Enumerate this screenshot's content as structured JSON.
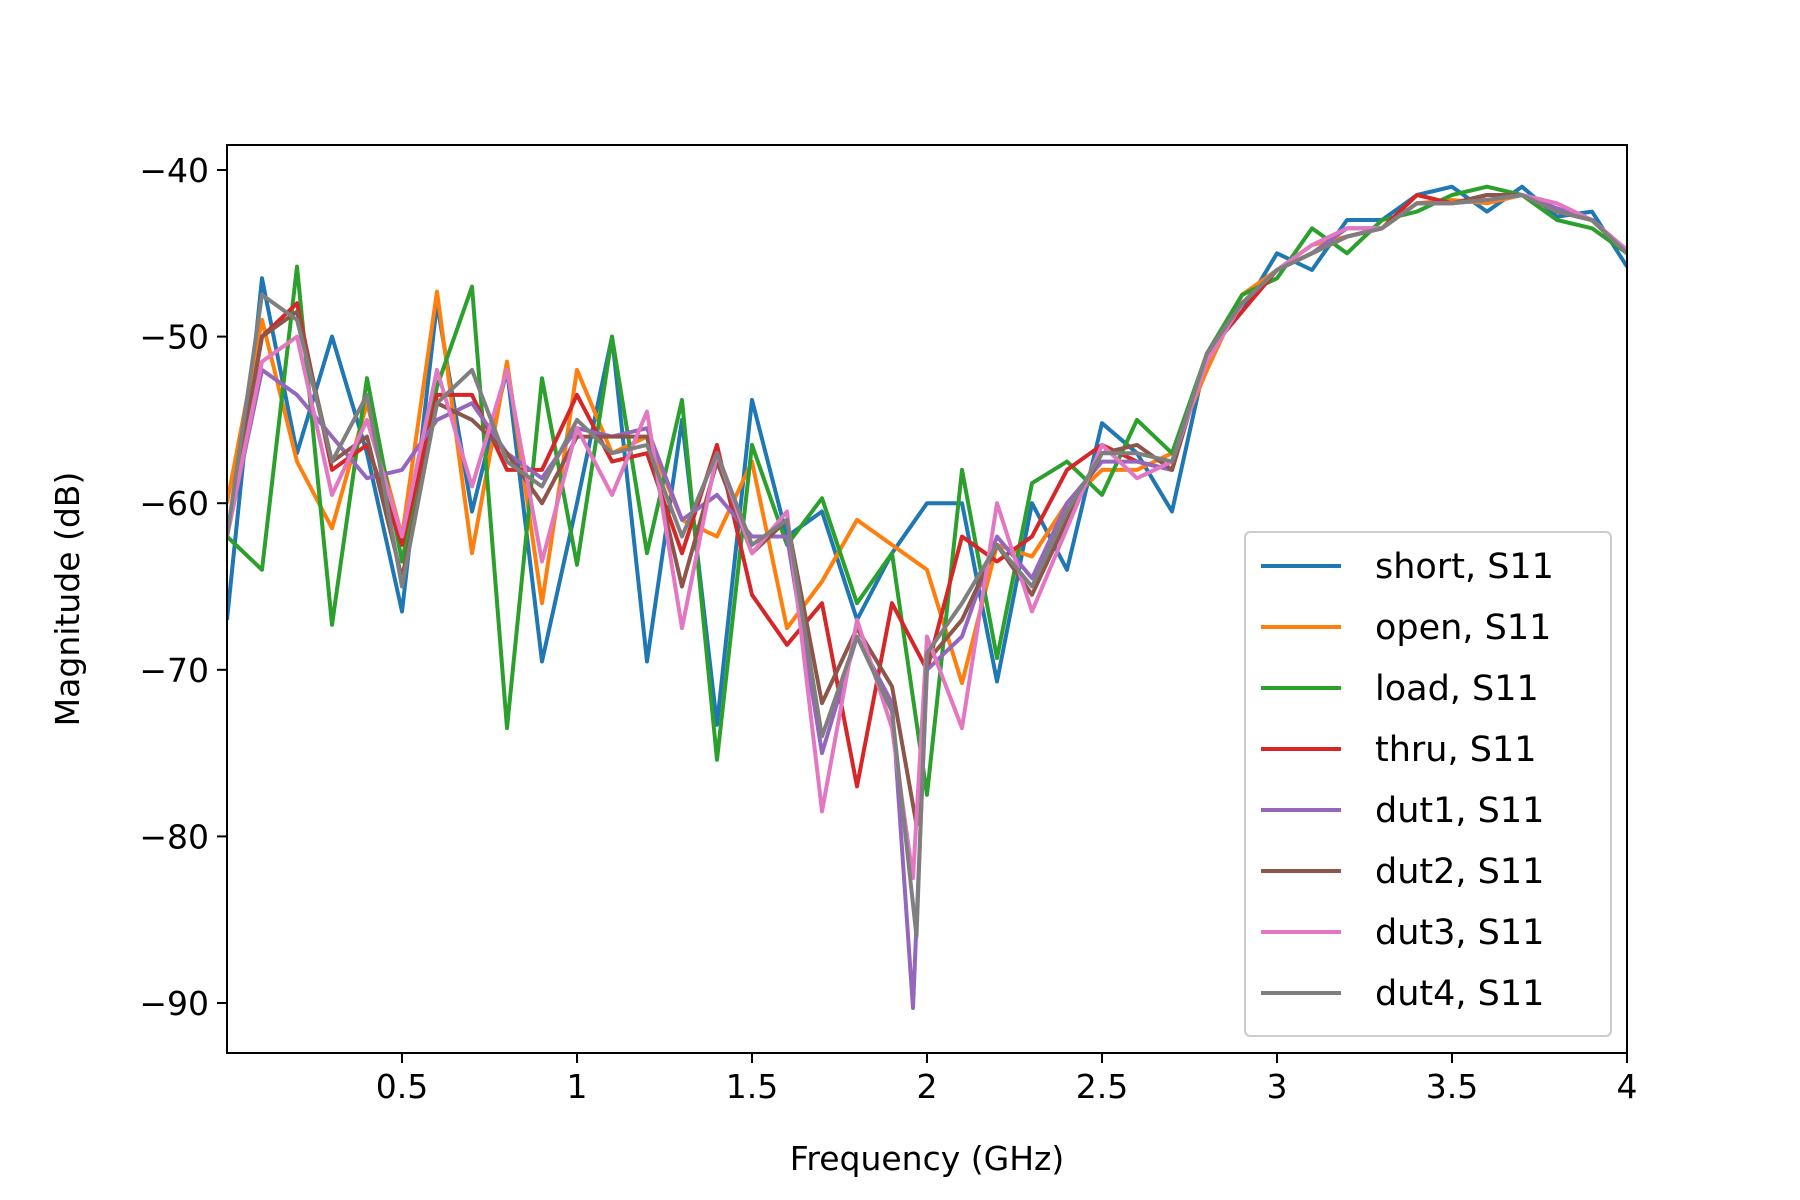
{
  "chart_data": {
    "type": "line",
    "title": "",
    "xlabel": "Frequency (GHz)",
    "ylabel": "Magnitude (dB)",
    "xlim": [
      0.0,
      4.0
    ],
    "ylim": [
      -93,
      -38.5
    ],
    "xticks": [
      0.5,
      1,
      1.5,
      2,
      2.5,
      3,
      3.5,
      4
    ],
    "xtick_labels": [
      "0.5",
      "1",
      "1.5",
      "2",
      "2.5",
      "3",
      "3.5",
      "4"
    ],
    "yticks": [
      -40,
      -50,
      -60,
      -70,
      -80,
      -90
    ],
    "ytick_labels": [
      "−40",
      "−50",
      "−60",
      "−70",
      "−80",
      "−90"
    ],
    "grid": false,
    "legend_position": "lower-right",
    "series": [
      {
        "name": "short, S11",
        "color": "#1f77b4",
        "x": [
          0.0,
          0.1,
          0.2,
          0.3,
          0.4,
          0.5,
          0.6,
          0.7,
          0.8,
          0.9,
          1.0,
          1.1,
          1.2,
          1.3,
          1.4,
          1.5,
          1.6,
          1.7,
          1.8,
          1.9,
          2.0,
          2.1,
          2.2,
          2.3,
          2.4,
          2.5,
          2.6,
          2.7,
          2.8,
          2.9,
          3.0,
          3.1,
          3.2,
          3.3,
          3.4,
          3.5,
          3.6,
          3.7,
          3.8,
          3.9,
          4.0
        ],
        "y": [
          -67,
          -46.5,
          -57,
          -50,
          -57,
          -66.5,
          -48,
          -60.5,
          -52,
          -69.5,
          -60,
          -50,
          -69.5,
          -55,
          -73.3,
          -53.8,
          -62,
          -60.5,
          -67,
          -63,
          -60,
          -60,
          -70.7,
          -60,
          -64,
          -55.2,
          -57,
          -60.5,
          -51,
          -48.5,
          -45,
          -46,
          -43,
          -43,
          -41.5,
          -41,
          -42.5,
          -41,
          -42.8,
          -42.5,
          -45.8
        ]
      },
      {
        "name": "open, S11",
        "color": "#ff7f0e",
        "x": [
          0.0,
          0.1,
          0.2,
          0.3,
          0.4,
          0.5,
          0.6,
          0.7,
          0.8,
          0.9,
          1.0,
          1.1,
          1.2,
          1.3,
          1.4,
          1.5,
          1.6,
          1.7,
          1.8,
          1.9,
          2.0,
          2.1,
          2.2,
          2.3,
          2.4,
          2.5,
          2.6,
          2.7,
          2.8,
          2.9,
          3.0,
          3.1,
          3.2,
          3.3,
          3.4,
          3.5,
          3.6,
          3.7,
          3.8,
          3.9,
          4.0
        ],
        "y": [
          -60,
          -49,
          -57.5,
          -61.5,
          -54,
          -62,
          -47.3,
          -63,
          -51.5,
          -66,
          -52,
          -57,
          -56,
          -61,
          -62,
          -57.5,
          -67.5,
          -64.7,
          -61,
          -62.5,
          -64,
          -70.8,
          -62.5,
          -63.2,
          -60,
          -58,
          -58,
          -57,
          -52,
          -47.5,
          -46,
          -44.5,
          -44,
          -43.5,
          -42,
          -41.8,
          -42,
          -41.5,
          -42.5,
          -43,
          -45
        ]
      },
      {
        "name": "load, S11",
        "color": "#2ca02c",
        "x": [
          0.0,
          0.1,
          0.2,
          0.3,
          0.4,
          0.5,
          0.6,
          0.7,
          0.8,
          0.9,
          1.0,
          1.1,
          1.2,
          1.3,
          1.4,
          1.5,
          1.6,
          1.7,
          1.8,
          1.9,
          2.0,
          2.1,
          2.2,
          2.3,
          2.4,
          2.5,
          2.6,
          2.7,
          2.8,
          2.9,
          3.0,
          3.1,
          3.2,
          3.3,
          3.4,
          3.5,
          3.6,
          3.7,
          3.8,
          3.9,
          4.0
        ],
        "y": [
          -62,
          -64,
          -45.8,
          -67.3,
          -52.5,
          -63.5,
          -53,
          -47,
          -73.5,
          -52.5,
          -63.7,
          -50,
          -63,
          -53.8,
          -75.4,
          -56.5,
          -62.5,
          -59.7,
          -66,
          -63,
          -77.5,
          -58,
          -69.3,
          -58.8,
          -57.5,
          -59.5,
          -55,
          -57,
          -51,
          -47.5,
          -46.5,
          -43.5,
          -45,
          -43,
          -42.5,
          -41.5,
          -41,
          -41.5,
          -43,
          -43.5,
          -45
        ]
      },
      {
        "name": "thru, S11",
        "color": "#d62728",
        "x": [
          0.0,
          0.1,
          0.2,
          0.3,
          0.4,
          0.5,
          0.6,
          0.7,
          0.8,
          0.9,
          1.0,
          1.1,
          1.2,
          1.3,
          1.4,
          1.5,
          1.6,
          1.7,
          1.8,
          1.9,
          2.0,
          2.1,
          2.2,
          2.3,
          2.4,
          2.5,
          2.6,
          2.7,
          2.8,
          2.9,
          3.0,
          3.1,
          3.2,
          3.3,
          3.4,
          3.5,
          3.6,
          3.7,
          3.8,
          3.9,
          4.0
        ],
        "y": [
          -62,
          -50,
          -48,
          -58,
          -56.5,
          -62.5,
          -53.5,
          -53.5,
          -58,
          -58,
          -53.5,
          -57.5,
          -57,
          -63,
          -56.5,
          -65.5,
          -68.5,
          -66,
          -77,
          -66,
          -70,
          -62,
          -63.5,
          -62,
          -58,
          -56.5,
          -57.5,
          -58,
          -51,
          -48.5,
          -46,
          -45,
          -44,
          -43.5,
          -41.5,
          -42,
          -41.5,
          -41.5,
          -42.5,
          -43,
          -45
        ]
      },
      {
        "name": "dut1, S11",
        "color": "#9467bd",
        "x": [
          0.0,
          0.1,
          0.2,
          0.3,
          0.4,
          0.5,
          0.6,
          0.7,
          0.8,
          0.9,
          1.0,
          1.1,
          1.2,
          1.3,
          1.4,
          1.5,
          1.6,
          1.7,
          1.8,
          1.9,
          1.96,
          2.0,
          2.1,
          2.2,
          2.3,
          2.4,
          2.5,
          2.6,
          2.7,
          2.8,
          2.9,
          3.0,
          3.1,
          3.2,
          3.3,
          3.4,
          3.5,
          3.6,
          3.7,
          3.8,
          3.9,
          4.0
        ],
        "y": [
          -62,
          -52,
          -53.5,
          -56,
          -58.5,
          -58,
          -55,
          -54,
          -57,
          -58.5,
          -55.5,
          -56,
          -55.5,
          -61,
          -59.5,
          -62,
          -62,
          -75,
          -68,
          -72,
          -90.3,
          -70,
          -68,
          -62,
          -64.5,
          -60,
          -57.5,
          -57.5,
          -58,
          -51,
          -48,
          -46,
          -45,
          -43.5,
          -43.5,
          -42,
          -42,
          -41.8,
          -41.5,
          -42.3,
          -43,
          -45
        ]
      },
      {
        "name": "dut2, S11",
        "color": "#8c564b",
        "x": [
          0.0,
          0.1,
          0.2,
          0.3,
          0.4,
          0.5,
          0.6,
          0.7,
          0.8,
          0.9,
          1.0,
          1.1,
          1.2,
          1.3,
          1.4,
          1.5,
          1.6,
          1.7,
          1.8,
          1.9,
          1.97,
          2.0,
          2.1,
          2.2,
          2.3,
          2.4,
          2.5,
          2.6,
          2.7,
          2.8,
          2.9,
          3.0,
          3.1,
          3.2,
          3.3,
          3.4,
          3.5,
          3.6,
          3.7,
          3.8,
          3.9,
          4.0
        ],
        "y": [
          -62,
          -50,
          -48.5,
          -57.5,
          -56,
          -64.5,
          -54,
          -55,
          -57,
          -60,
          -56,
          -56,
          -56,
          -65,
          -57.5,
          -63,
          -61,
          -72,
          -67.5,
          -71,
          -79.3,
          -69.5,
          -67,
          -62.5,
          -65.5,
          -61,
          -57,
          -56.5,
          -58,
          -51,
          -48,
          -46,
          -45,
          -44,
          -43.5,
          -42,
          -42,
          -41.5,
          -41.5,
          -42.5,
          -43,
          -45
        ]
      },
      {
        "name": "dut3, S11",
        "color": "#e377c2",
        "x": [
          0.0,
          0.1,
          0.2,
          0.3,
          0.4,
          0.5,
          0.6,
          0.7,
          0.8,
          0.9,
          1.0,
          1.1,
          1.2,
          1.3,
          1.4,
          1.5,
          1.6,
          1.7,
          1.8,
          1.9,
          1.96,
          2.0,
          2.1,
          2.2,
          2.3,
          2.4,
          2.5,
          2.6,
          2.7,
          2.8,
          2.9,
          3.0,
          3.1,
          3.2,
          3.3,
          3.4,
          3.5,
          3.6,
          3.7,
          3.8,
          3.9,
          4.0
        ],
        "y": [
          -62,
          -51.5,
          -50,
          -59.5,
          -55,
          -62,
          -52,
          -59,
          -52,
          -63.5,
          -55.5,
          -59.5,
          -54.5,
          -67.5,
          -57,
          -63,
          -60.5,
          -78.5,
          -67,
          -73.5,
          -82.5,
          -68,
          -73.5,
          -60,
          -66.5,
          -61.5,
          -56.5,
          -58.5,
          -57.5,
          -51.5,
          -48,
          -46,
          -44.5,
          -43.5,
          -43.5,
          -42,
          -42,
          -41.8,
          -41.5,
          -42,
          -43,
          -44.8
        ]
      },
      {
        "name": "dut4, S11",
        "color": "#7f7f7f",
        "x": [
          0.0,
          0.1,
          0.2,
          0.3,
          0.4,
          0.5,
          0.6,
          0.7,
          0.8,
          0.9,
          1.0,
          1.1,
          1.2,
          1.3,
          1.4,
          1.5,
          1.6,
          1.7,
          1.8,
          1.9,
          1.97,
          2.0,
          2.1,
          2.2,
          2.3,
          2.4,
          2.5,
          2.6,
          2.7,
          2.8,
          2.9,
          3.0,
          3.1,
          3.2,
          3.3,
          3.4,
          3.5,
          3.6,
          3.7,
          3.8,
          3.9,
          4.0
        ],
        "y": [
          -62,
          -47.5,
          -49,
          -57.5,
          -53.5,
          -65,
          -54,
          -52,
          -57.5,
          -59,
          -55,
          -57,
          -56.5,
          -62,
          -57,
          -62.5,
          -61,
          -74,
          -68,
          -72.5,
          -86,
          -69,
          -66,
          -62.5,
          -65,
          -60.5,
          -57,
          -57,
          -57.5,
          -51,
          -48,
          -46,
          -45,
          -44,
          -43.5,
          -42,
          -42,
          -41.8,
          -41.5,
          -42.5,
          -43,
          -45
        ]
      }
    ]
  }
}
